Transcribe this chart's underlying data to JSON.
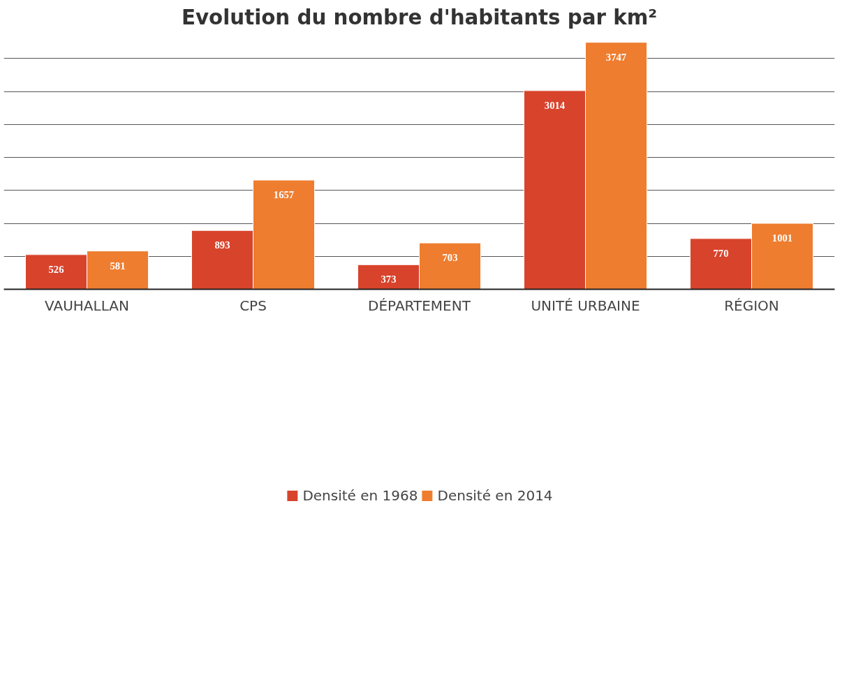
{
  "chart_data": {
    "type": "bar",
    "title": "Evolution du nombre d'habitants par km²",
    "categories": [
      "VAUHALLAN",
      "CPS",
      "DÉPARTEMENT",
      "UNITÉ URBAINE",
      "RÉGION"
    ],
    "series": [
      {
        "name": "Densité en 1968",
        "color": "#d8432c",
        "values": [
          526,
          893,
          373,
          3014,
          770
        ]
      },
      {
        "name": "Densité en 2014",
        "color": "#ee7d2f",
        "values": [
          581,
          1657,
          703,
          3747,
          1001
        ]
      }
    ],
    "yticks": [
      {
        "value": 0,
        "label": null
      },
      {
        "value": 500,
        "label": null
      },
      {
        "value": 1000,
        "label": null
      },
      {
        "value": 1500,
        "label": null
      },
      {
        "value": 2000,
        "label": null
      },
      {
        "value": 2500,
        "label": null
      },
      {
        "value": 3000,
        "label": null
      },
      {
        "value": 3500,
        "label": null
      }
    ],
    "grid": "y",
    "legend": "bottom",
    "data_labels": true
  }
}
